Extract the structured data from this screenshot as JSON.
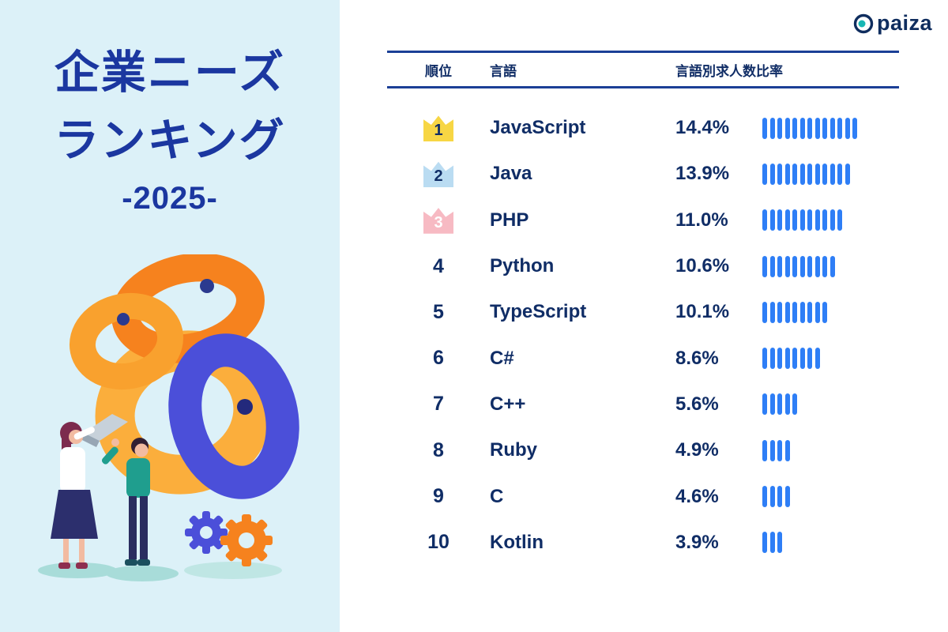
{
  "theme": {
    "left_bg": "#dcf1f8",
    "title_blue": "#1b37a0",
    "navy_text": "#102d66",
    "rule_color": "#1b3f96",
    "bar_color": "#2e7ef6",
    "rank1_bg": "#f7d644",
    "rank2_bg": "#badcf2",
    "rank3_bg": "#f7bac3",
    "logo_teal": "#18b7b4"
  },
  "left_panel": {
    "title_line1": "企業ニーズ",
    "title_line2": "ランキング",
    "subtitle": "-2025-"
  },
  "logo": {
    "text": "paiza"
  },
  "table_headers": {
    "rank": "順位",
    "language": "言語",
    "ratio": "言語別求人数比率"
  },
  "chart_data": {
    "type": "bar",
    "orientation": "horizontal",
    "title": "企業ニーズランキング -2025-",
    "categories": [
      "JavaScript",
      "Java",
      "PHP",
      "Python",
      "TypeScript",
      "C#",
      "C++",
      "Ruby",
      "C",
      "Kotlin"
    ],
    "ranks": [
      "1",
      "2",
      "3",
      "4",
      "5",
      "6",
      "7",
      "8",
      "9",
      "10"
    ],
    "values": [
      14.4,
      13.9,
      11.0,
      10.6,
      10.1,
      8.6,
      5.6,
      4.9,
      4.6,
      3.9
    ],
    "value_labels": [
      "14.4%",
      "13.9%",
      "11.0%",
      "10.6%",
      "10.1%",
      "8.6%",
      "5.6%",
      "4.9%",
      "4.6%",
      "3.9%"
    ],
    "bar_segments": [
      13,
      12,
      11,
      10,
      9,
      8,
      5,
      4,
      4,
      3
    ],
    "xlabel": "言語別求人数比率",
    "ylabel": "言語",
    "unit": "%",
    "legend": "none",
    "grid": "off"
  }
}
